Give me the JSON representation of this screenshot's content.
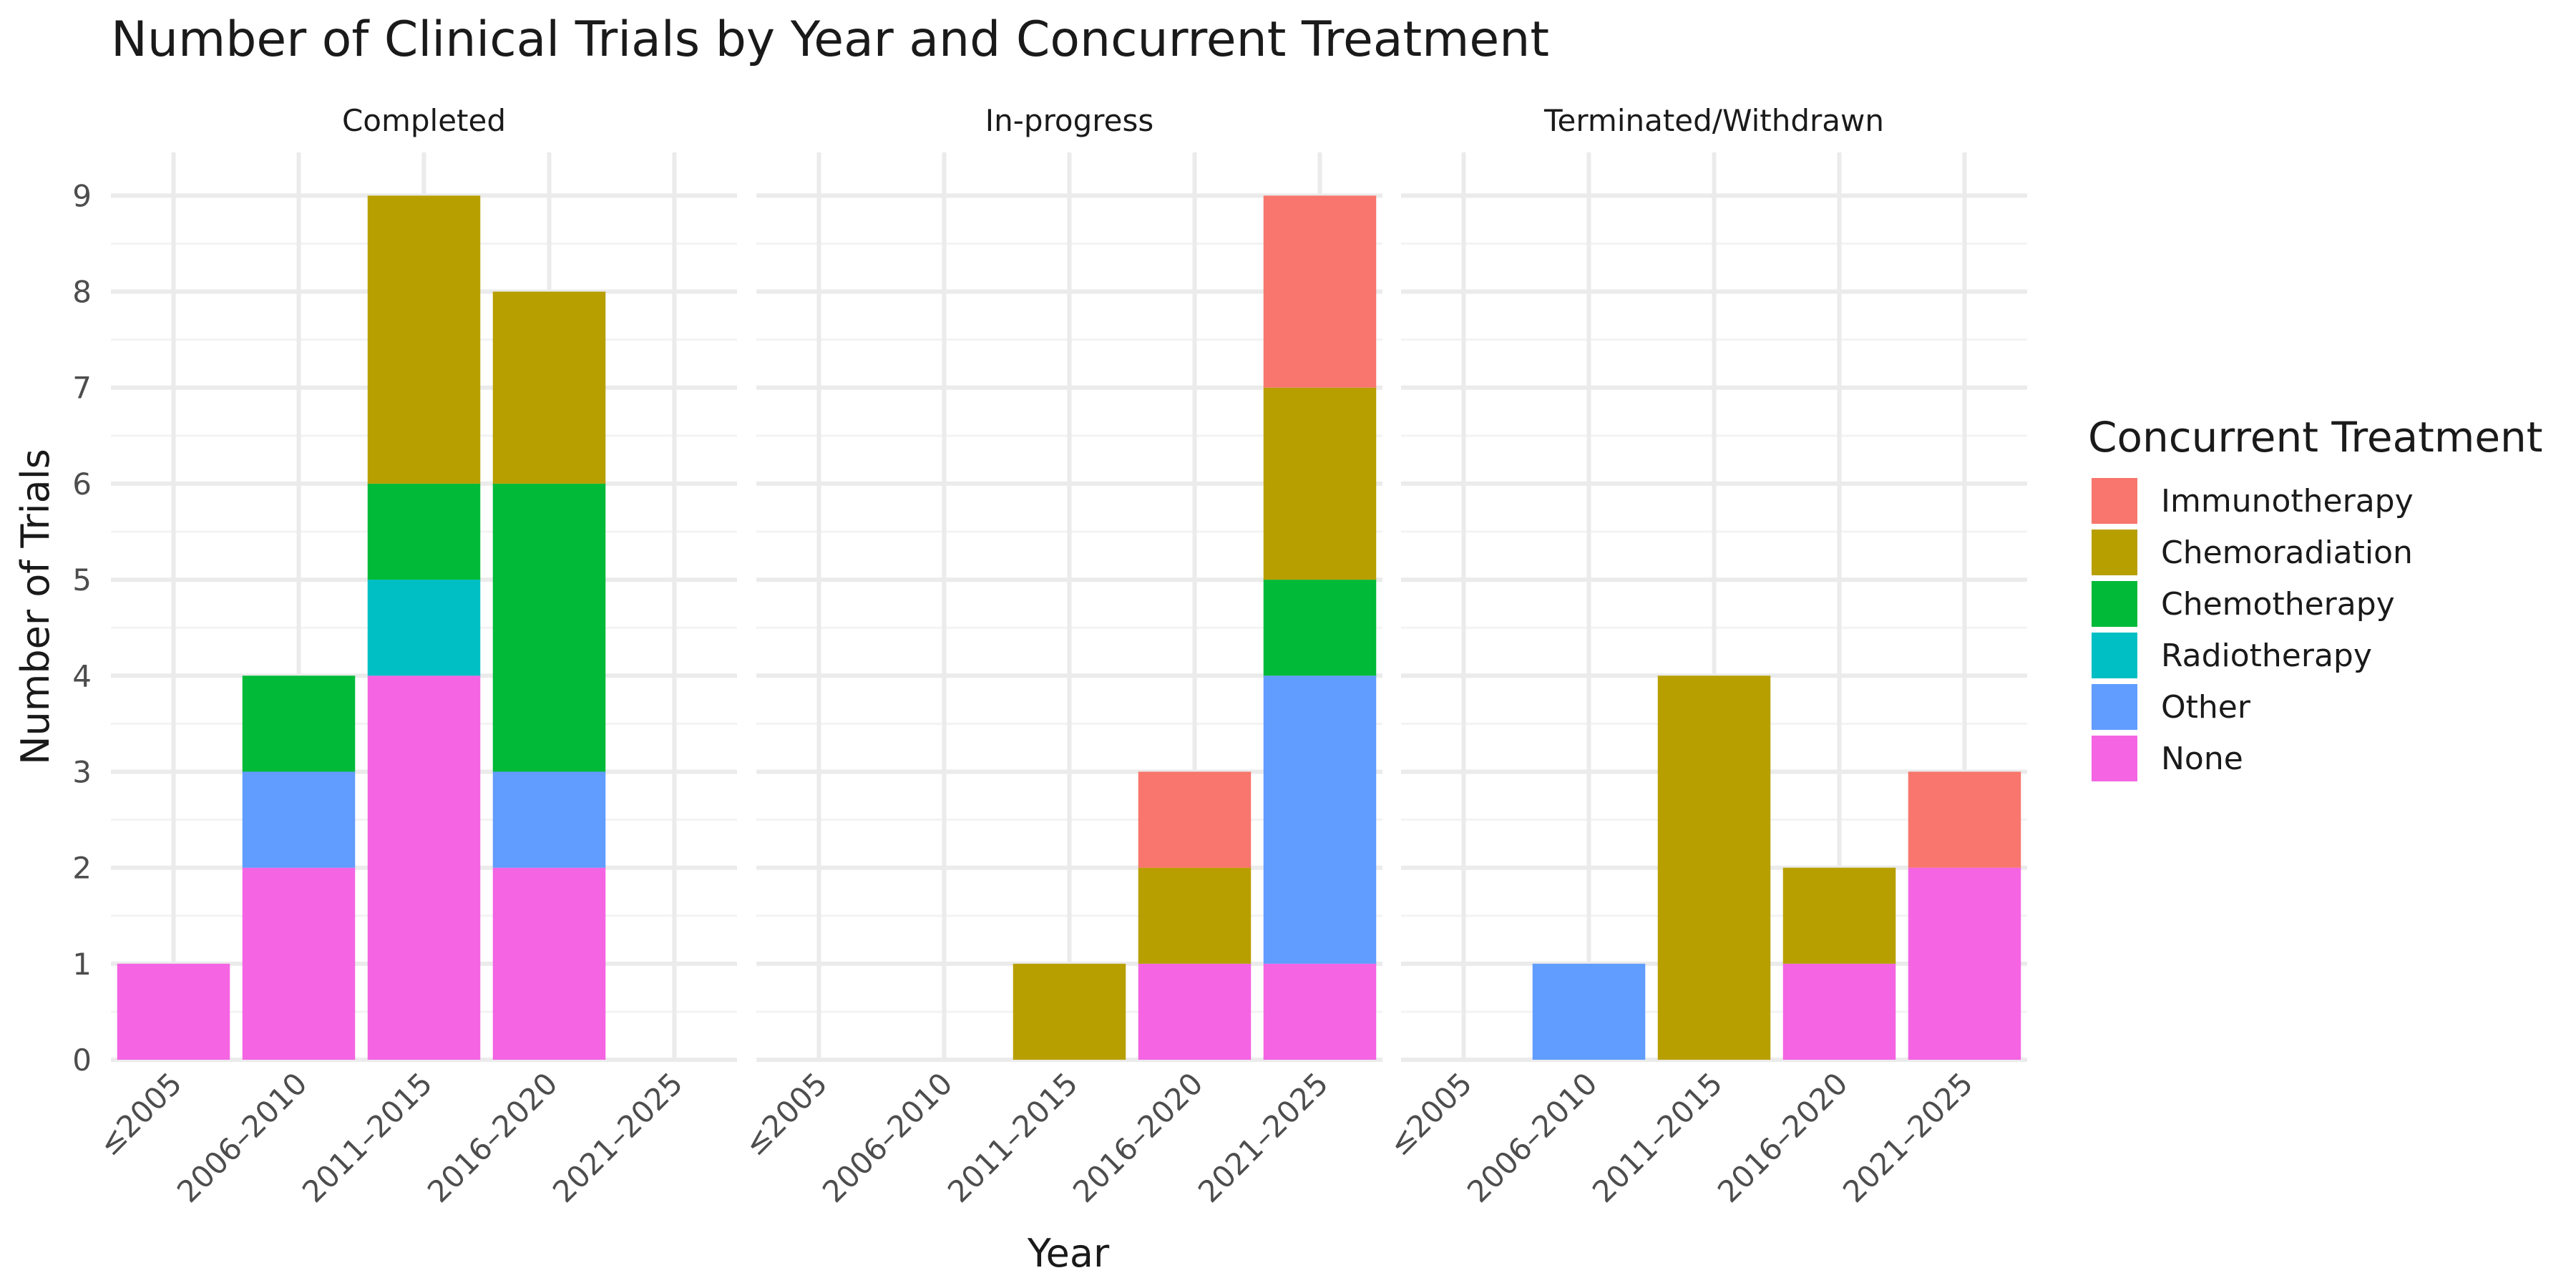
{
  "chart_data": {
    "type": "bar",
    "stacked": true,
    "title": "Number of Clinical Trials by Year and Concurrent Treatment",
    "xlabel": "Year",
    "ylabel": "Number of Trials",
    "ylim": [
      0,
      9.45
    ],
    "yticks": [
      0,
      1,
      2,
      3,
      4,
      5,
      6,
      7,
      8,
      9
    ],
    "grid": true,
    "categories": [
      "≤2005",
      "2006–2010",
      "2011–2015",
      "2016–2020",
      "2021–2025"
    ],
    "facets": [
      "Completed",
      "In-progress",
      "Terminated/Withdrawn"
    ],
    "legend": {
      "title": "Concurrent Treatment",
      "position": "right"
    },
    "series": [
      {
        "name": "None",
        "color": "#F564E3",
        "values": [
          [
            1,
            2,
            4,
            2,
            0
          ],
          [
            0,
            0,
            0,
            1,
            1
          ],
          [
            0,
            0,
            0,
            1,
            2
          ]
        ]
      },
      {
        "name": "Other",
        "color": "#619CFF",
        "values": [
          [
            0,
            1,
            0,
            1,
            0
          ],
          [
            0,
            0,
            0,
            0,
            3
          ],
          [
            0,
            1,
            0,
            0,
            0
          ]
        ]
      },
      {
        "name": "Radiotherapy",
        "color": "#00BFC4",
        "values": [
          [
            0,
            0,
            1,
            0,
            0
          ],
          [
            0,
            0,
            0,
            0,
            0
          ],
          [
            0,
            0,
            0,
            0,
            0
          ]
        ]
      },
      {
        "name": "Chemotherapy",
        "color": "#00BA38",
        "values": [
          [
            0,
            1,
            1,
            3,
            0
          ],
          [
            0,
            0,
            0,
            0,
            1
          ],
          [
            0,
            0,
            0,
            0,
            0
          ]
        ]
      },
      {
        "name": "Chemoradiation",
        "color": "#B79F00",
        "values": [
          [
            0,
            0,
            3,
            2,
            0
          ],
          [
            0,
            0,
            1,
            1,
            2
          ],
          [
            0,
            0,
            4,
            1,
            0
          ]
        ]
      },
      {
        "name": "Immunotherapy",
        "color": "#F8766D",
        "values": [
          [
            0,
            0,
            0,
            0,
            0
          ],
          [
            0,
            0,
            0,
            1,
            2
          ],
          [
            0,
            0,
            0,
            0,
            1
          ]
        ]
      }
    ],
    "legend_order": [
      "Immunotherapy",
      "Chemoradiation",
      "Chemotherapy",
      "Radiotherapy",
      "Other",
      "None"
    ]
  }
}
